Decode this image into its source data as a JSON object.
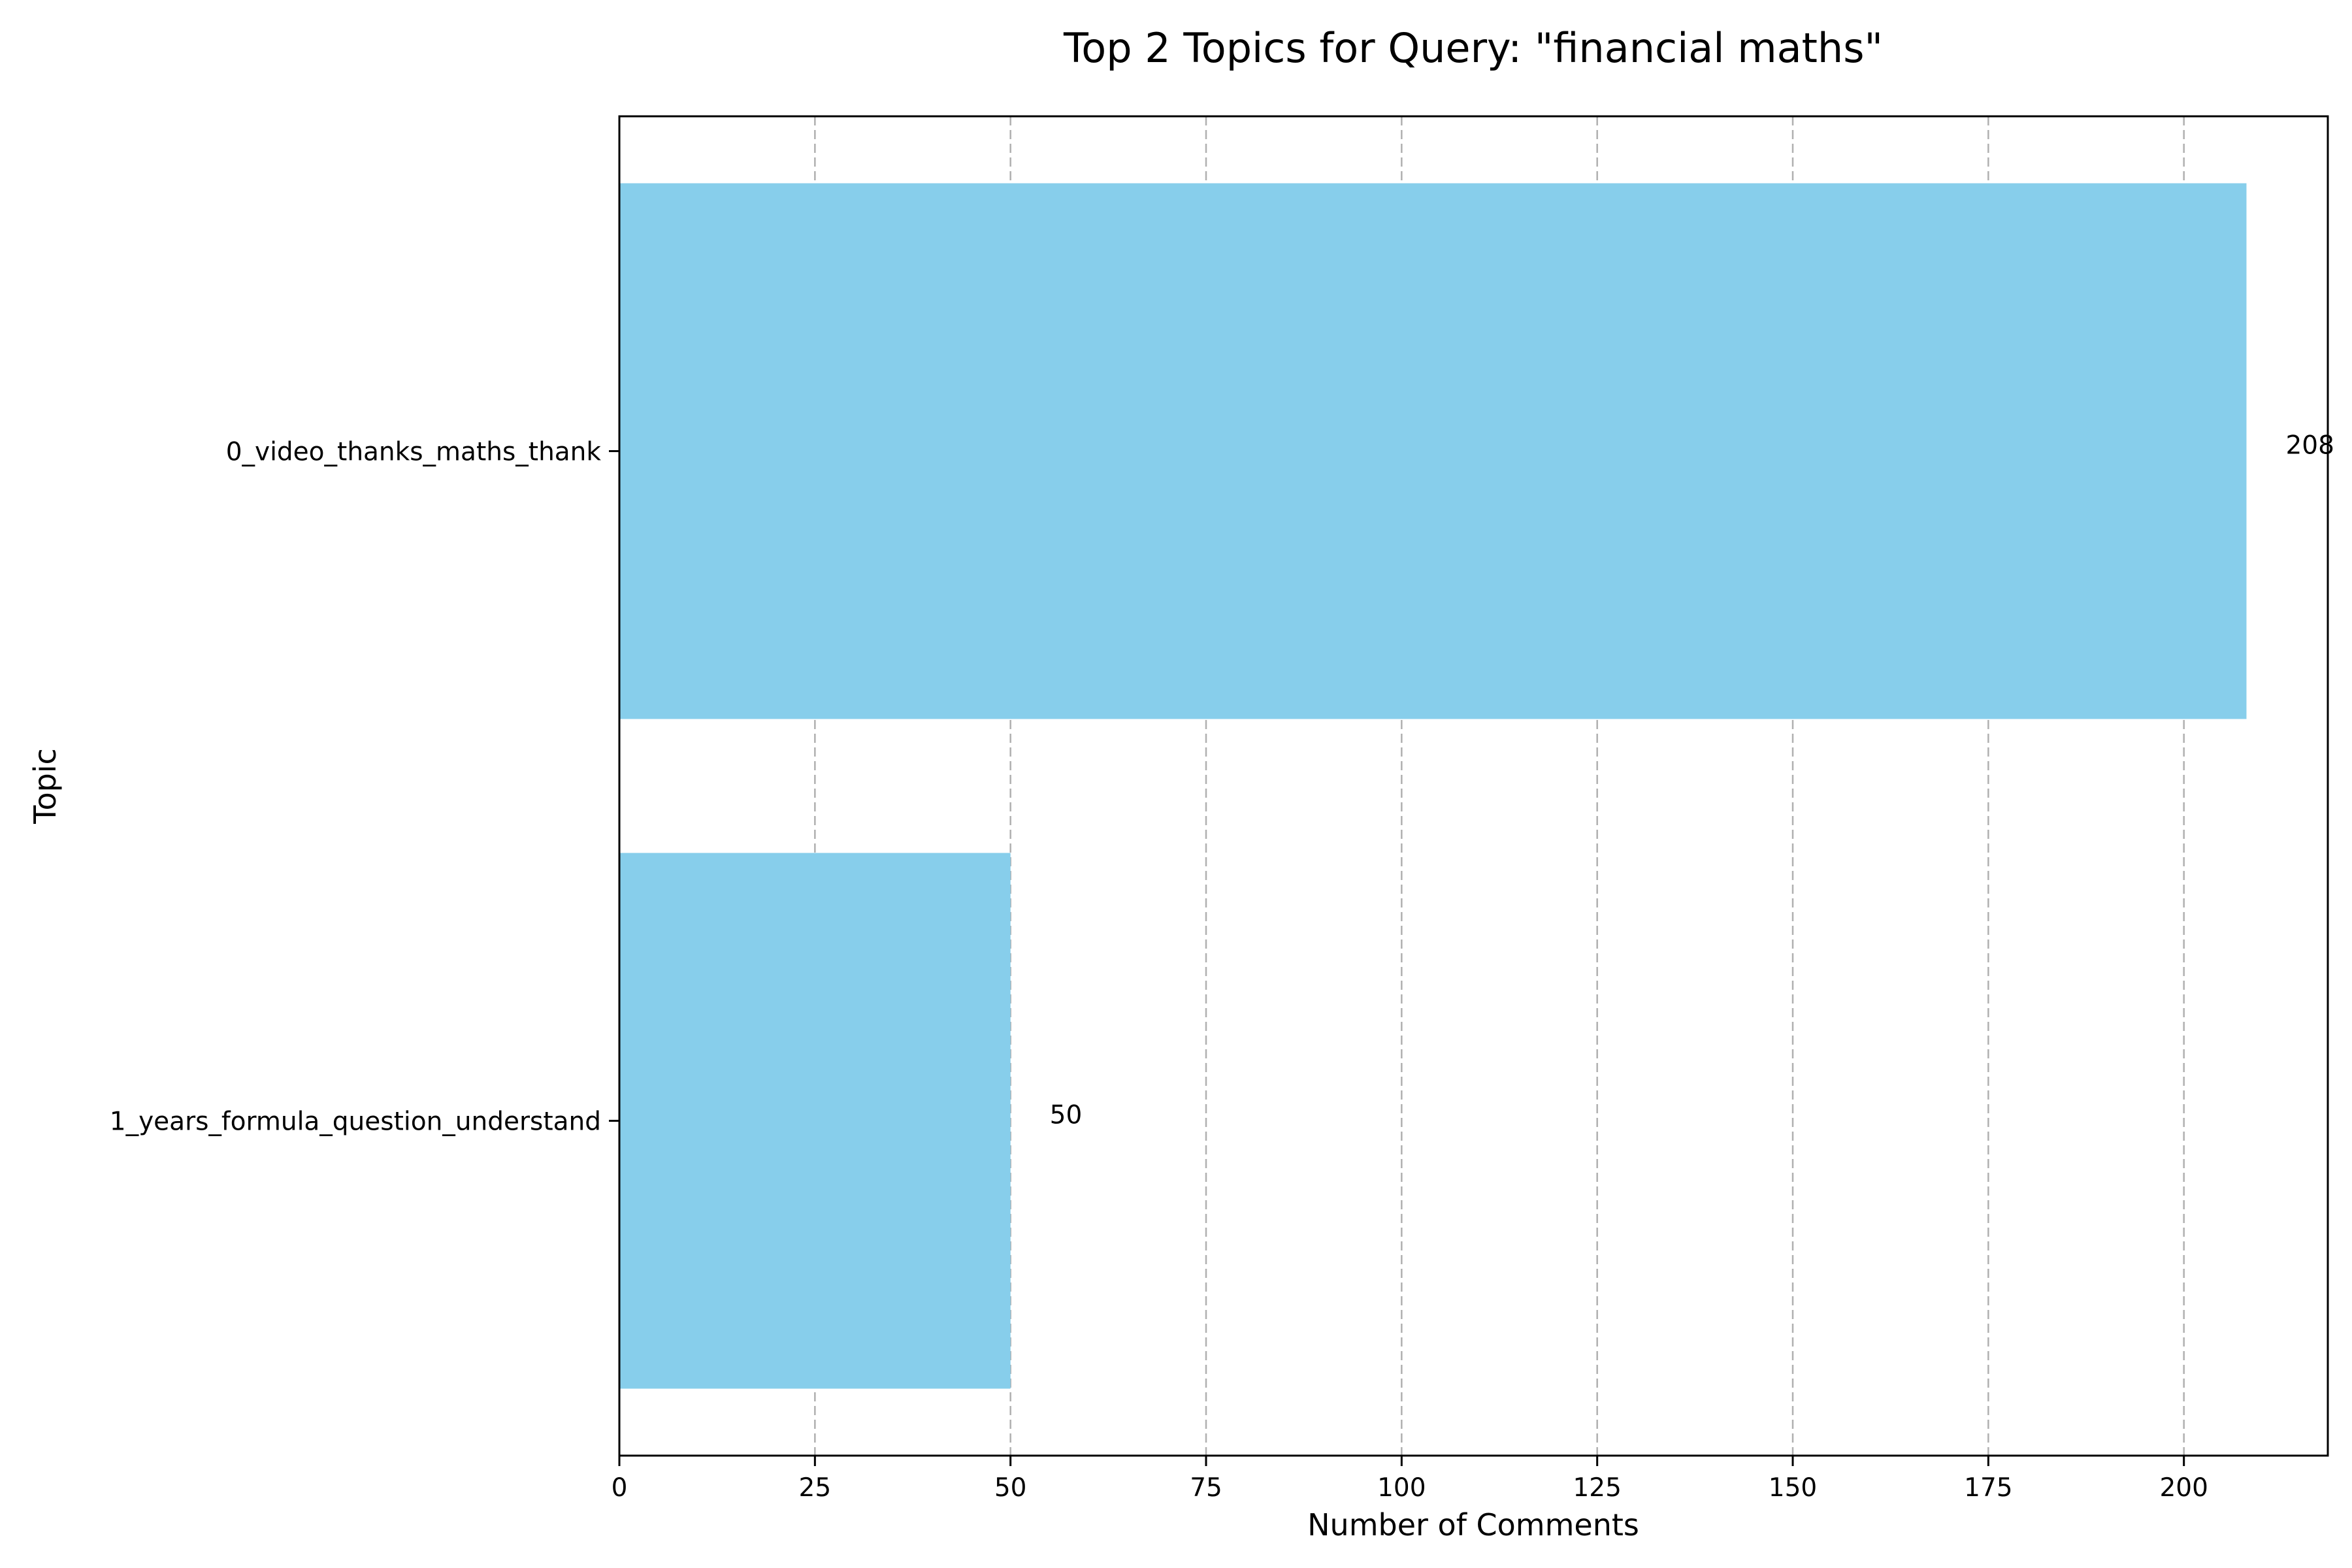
{
  "chart_data": {
    "type": "bar",
    "orientation": "horizontal",
    "title": "Top 2 Topics for Query: \"financial maths\"",
    "xlabel": "Number of Comments",
    "ylabel": "Topic",
    "categories": [
      "0_video_thanks_maths_thank",
      "1_years_formula_question_understand"
    ],
    "values": [
      208,
      50
    ],
    "data_labels": [
      "208",
      "50"
    ],
    "xlim": [
      0,
      218.4
    ],
    "xticks": [
      0,
      25,
      50,
      75,
      100,
      125,
      150,
      175,
      200
    ],
    "grid": "x-dashed",
    "bar_color": "#87CEEB",
    "legend": "none"
  }
}
